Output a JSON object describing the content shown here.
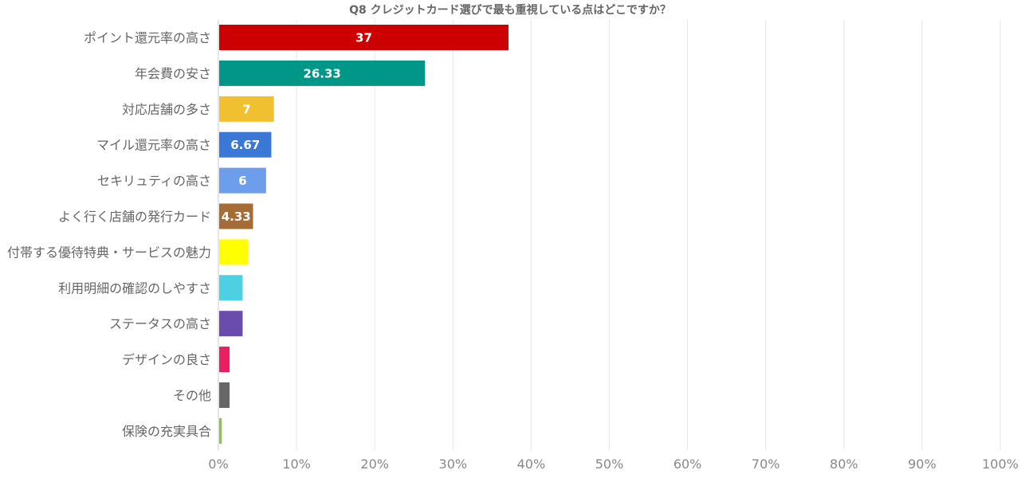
{
  "chart_data": {
    "type": "bar",
    "orientation": "horizontal",
    "title": "Q8 クレジットカード選びで最も重視している点はどこですか？",
    "xlabel": "",
    "ylabel": "",
    "xlim": [
      0,
      100
    ],
    "x_ticks": [
      "0%",
      "10%",
      "20%",
      "30%",
      "40%",
      "50%",
      "60%",
      "70%",
      "80%",
      "90%",
      "100%"
    ],
    "grid": true,
    "legend": "none",
    "categories": [
      "ポイント還元率の高さ",
      "年会費の安さ",
      "対応店舗の多さ",
      "マイル還元率の高さ",
      "セキリュティの高さ",
      "よく行く店舗の発行カード",
      "付帯する優待特典・サービスの魅力",
      "利用明細の確認のしやすさ",
      "ステータスの高さ",
      "デザインの良さ",
      "その他",
      "保険の充実具合"
    ],
    "values": [
      37,
      26.33,
      7,
      6.67,
      6,
      4.33,
      3.67,
      3,
      3,
      1.33,
      1.33,
      0.33
    ],
    "data_labels": [
      "37",
      "26.33",
      "7",
      "6.67",
      "6",
      "4.33",
      "",
      "",
      "",
      "",
      "",
      ""
    ],
    "colors": [
      "#cc0000",
      "#009688",
      "#f0c030",
      "#3a78d8",
      "#6d9eeb",
      "#a66c35",
      "#ffff00",
      "#4dd0e1",
      "#6a4cae",
      "#e91e63",
      "#666666",
      "#8bc34a"
    ]
  }
}
